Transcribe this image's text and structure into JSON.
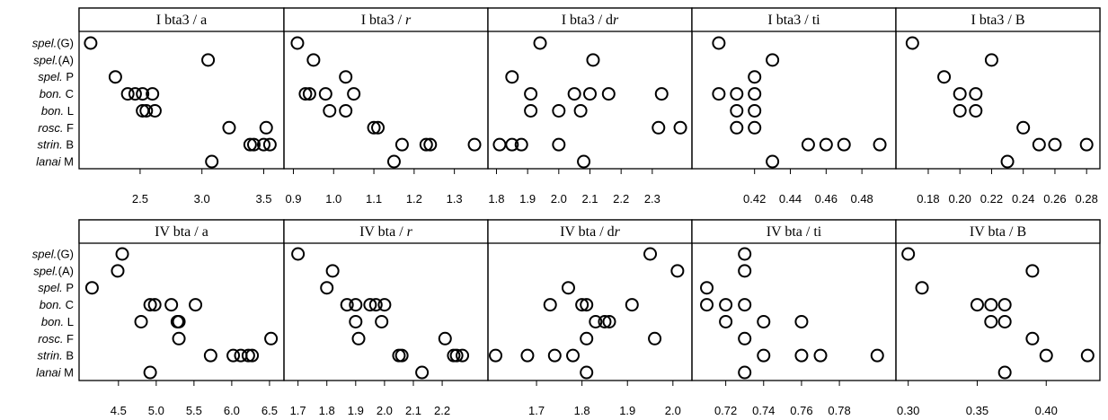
{
  "figure": {
    "background": "#ffffff",
    "marker_color": "#000000",
    "strip_color": "#ffffff"
  },
  "row_labels": [
    {
      "italic": "spel.",
      "plain": "(G)"
    },
    {
      "italic": "spel.",
      "plain": "(A)"
    },
    {
      "italic": "spel.",
      "plain": "  P"
    },
    {
      "italic": "bon.",
      "plain": "  C"
    },
    {
      "italic": "bon.",
      "plain": "  L"
    },
    {
      "italic": "rosc.",
      "plain": "  F"
    },
    {
      "italic": "strin.",
      "plain": "  B"
    },
    {
      "italic": "lanai",
      "plain": "  M"
    }
  ],
  "chart_data": [
    {
      "type": "scatter",
      "row": 0,
      "title": {
        "prefix": "I bta3 / ",
        "var": "a",
        "italic": false
      },
      "xlim": [
        2.05,
        3.62
      ],
      "xticks": [
        2.5,
        3.0,
        3.5
      ],
      "ticklabels": [
        "2.5",
        "3.0",
        "3.5"
      ],
      "points": [
        [
          2.1
        ],
        [
          3.05
        ],
        [
          2.3
        ],
        [
          2.4,
          2.46,
          2.52,
          2.6
        ],
        [
          2.52,
          2.55,
          2.62
        ],
        [
          3.22,
          3.52
        ],
        [
          3.39,
          3.42,
          3.5,
          3.55
        ],
        [
          3.08
        ]
      ]
    },
    {
      "type": "scatter",
      "row": 0,
      "title": {
        "prefix": "I bta3 / ",
        "var": "r",
        "italic": true
      },
      "xlim": [
        0.89,
        1.37
      ],
      "xticks": [
        0.9,
        1.0,
        1.1,
        1.2,
        1.3
      ],
      "ticklabels": [
        "0.9",
        "1.0",
        "1.1",
        "1.2",
        "1.3"
      ],
      "points": [
        [
          0.91
        ],
        [
          0.95
        ],
        [
          1.03
        ],
        [
          0.93,
          0.94,
          0.98,
          1.05
        ],
        [
          0.99,
          1.03
        ],
        [
          1.1,
          1.11
        ],
        [
          1.17,
          1.23,
          1.24,
          1.35
        ],
        [
          1.15
        ]
      ]
    },
    {
      "type": "scatter",
      "row": 0,
      "title": {
        "prefix": "I bta3 / d",
        "var": "r",
        "italic": true
      },
      "xlim": [
        1.79,
        2.41
      ],
      "xticks": [
        1.8,
        1.9,
        2.0,
        2.1,
        2.2,
        2.3
      ],
      "ticklabels": [
        "1.8",
        "1.9",
        "2.0",
        "2.1",
        "2.2",
        "2.3"
      ],
      "points": [
        [
          1.94
        ],
        [
          2.11
        ],
        [
          1.85
        ],
        [
          1.91,
          2.05,
          2.1,
          2.16,
          2.33
        ],
        [
          1.91,
          2.0,
          2.07
        ],
        [
          2.32,
          2.39
        ],
        [
          1.81,
          1.85,
          1.88,
          2.0
        ],
        [
          2.08
        ]
      ]
    },
    {
      "type": "scatter",
      "row": 0,
      "title": {
        "prefix": "I bta3 / ",
        "var": "ti",
        "italic": false
      },
      "xlim": [
        0.388,
        0.496
      ],
      "xticks": [
        0.42,
        0.44,
        0.46,
        0.48
      ],
      "ticklabels": [
        "0.42",
        "0.44",
        "0.46",
        "0.48"
      ],
      "points": [
        [
          0.4
        ],
        [
          0.43
        ],
        [
          0.42
        ],
        [
          0.4,
          0.41,
          0.42
        ],
        [
          0.41,
          0.42
        ],
        [
          0.41,
          0.42
        ],
        [
          0.45,
          0.46,
          0.47,
          0.49
        ],
        [
          0.43
        ]
      ]
    },
    {
      "type": "scatter",
      "row": 0,
      "title": {
        "prefix": "I bta3 / ",
        "var": "B",
        "italic": false
      },
      "xlim": [
        0.163,
        0.285
      ],
      "xticks": [
        0.18,
        0.2,
        0.22,
        0.24,
        0.26,
        0.28
      ],
      "ticklabels": [
        "0.18",
        "0.20",
        "0.22",
        "0.24",
        "0.26",
        "0.28"
      ],
      "points": [
        [
          0.17
        ],
        [
          0.22
        ],
        [
          0.19
        ],
        [
          0.2,
          0.21
        ],
        [
          0.2,
          0.21
        ],
        [
          0.24
        ],
        [
          0.25,
          0.26,
          0.28
        ],
        [
          0.23
        ]
      ]
    },
    {
      "type": "scatter",
      "row": 1,
      "title": {
        "prefix": "IV bta / ",
        "var": "a",
        "italic": false
      },
      "xlim": [
        4.05,
        6.62
      ],
      "xticks": [
        4.5,
        5.0,
        5.5,
        6.0,
        6.5
      ],
      "ticklabels": [
        "4.5",
        "5.0",
        "5.5",
        "6.0",
        "6.5"
      ],
      "points": [
        [
          4.55
        ],
        [
          4.49
        ],
        [
          4.15
        ],
        [
          4.92,
          4.98,
          5.2,
          5.52
        ],
        [
          4.8,
          5.28,
          5.3
        ],
        [
          5.3,
          6.52
        ],
        [
          5.72,
          6.02,
          6.12,
          6.22,
          6.27
        ],
        [
          4.92
        ]
      ]
    },
    {
      "type": "scatter",
      "row": 1,
      "title": {
        "prefix": "IV bta / ",
        "var": "r",
        "italic": true
      },
      "xlim": [
        1.67,
        2.34
      ],
      "xticks": [
        1.7,
        1.8,
        1.9,
        2.0,
        2.1,
        2.2
      ],
      "ticklabels": [
        "1.7",
        "1.8",
        "1.9",
        "2.0",
        "2.1",
        "2.2"
      ],
      "points": [
        [
          1.7
        ],
        [
          1.82
        ],
        [
          1.8
        ],
        [
          1.87,
          1.9,
          1.95,
          1.97,
          2.0
        ],
        [
          1.9,
          1.99
        ],
        [
          1.91,
          2.21
        ],
        [
          2.05,
          2.06,
          2.24,
          2.25,
          2.27
        ],
        [
          2.13
        ]
      ]
    },
    {
      "type": "scatter",
      "row": 1,
      "title": {
        "prefix": "IV bta / d",
        "var": "r",
        "italic": true
      },
      "xlim": [
        1.605,
        2.03
      ],
      "xticks": [
        1.7,
        1.8,
        1.9,
        2.0
      ],
      "ticklabels": [
        "1.7",
        "1.8",
        "1.9",
        "2.0"
      ],
      "points": [
        [
          1.95
        ],
        [
          2.01
        ],
        [
          1.77
        ],
        [
          1.73,
          1.8,
          1.81,
          1.91
        ],
        [
          1.83,
          1.85,
          1.86
        ],
        [
          1.81,
          1.96
        ],
        [
          1.61,
          1.68,
          1.74,
          1.78
        ],
        [
          1.81
        ]
      ]
    },
    {
      "type": "scatter",
      "row": 1,
      "title": {
        "prefix": "IV bta / ",
        "var": "ti",
        "italic": false
      },
      "xlim": [
        0.705,
        0.807
      ],
      "xticks": [
        0.72,
        0.74,
        0.76,
        0.78
      ],
      "ticklabels": [
        "0.72",
        "0.74",
        "0.76",
        "0.78"
      ],
      "points": [
        [
          0.73
        ],
        [
          0.73
        ],
        [
          0.71
        ],
        [
          0.71,
          0.72,
          0.73
        ],
        [
          0.72,
          0.74,
          0.76
        ],
        [
          0.73
        ],
        [
          0.74,
          0.76,
          0.77,
          0.8
        ],
        [
          0.73
        ]
      ]
    },
    {
      "type": "scatter",
      "row": 1,
      "title": {
        "prefix": "IV bta / ",
        "var": "B",
        "italic": false
      },
      "xlim": [
        0.295,
        0.435
      ],
      "xticks": [
        0.3,
        0.35,
        0.4
      ],
      "ticklabels": [
        "0.30",
        "0.35",
        "0.40"
      ],
      "points": [
        [
          0.3
        ],
        [
          0.39
        ],
        [
          0.31
        ],
        [
          0.35,
          0.36,
          0.37
        ],
        [
          0.36,
          0.37
        ],
        [
          0.39
        ],
        [
          0.4,
          0.43
        ],
        [
          0.37
        ]
      ]
    }
  ]
}
